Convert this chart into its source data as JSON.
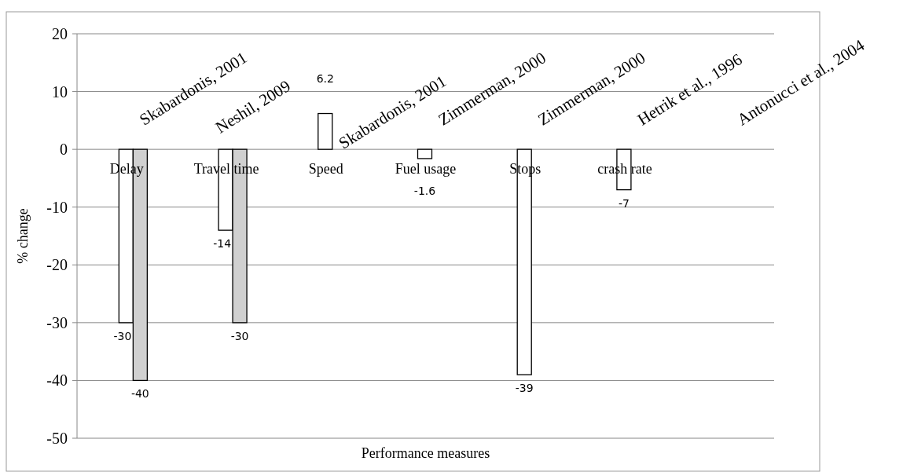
{
  "chart_data": {
    "type": "bar",
    "xlabel": "Performance measures",
    "ylabel": "% change",
    "categories": [
      "Delay",
      "Travel time",
      "Speed",
      "Fuel usage",
      "Stops",
      "crash rate",
      null
    ],
    "series": [
      {
        "color": "#ffffff",
        "values": [
          -30,
          -14,
          6.2,
          -1.6,
          -39,
          -7,
          null
        ]
      },
      {
        "color": "#d0d0d0",
        "values": [
          -40,
          -30,
          null,
          null,
          null,
          null,
          null
        ]
      }
    ],
    "ylim": [
      -50,
      20
    ],
    "yticks": [
      -50,
      -40,
      -30,
      -20,
      -10,
      0,
      10,
      20
    ],
    "grid": "y",
    "data_labels": true,
    "annotations": [
      "Skabardonis, 2001",
      "Neshil, 2009",
      "Skabardonis, 2001",
      "Zimmerman, 2000",
      "Zimmerman, 2000",
      "Hetrik et al., 1996",
      "Antonucci et al., 2004"
    ]
  }
}
